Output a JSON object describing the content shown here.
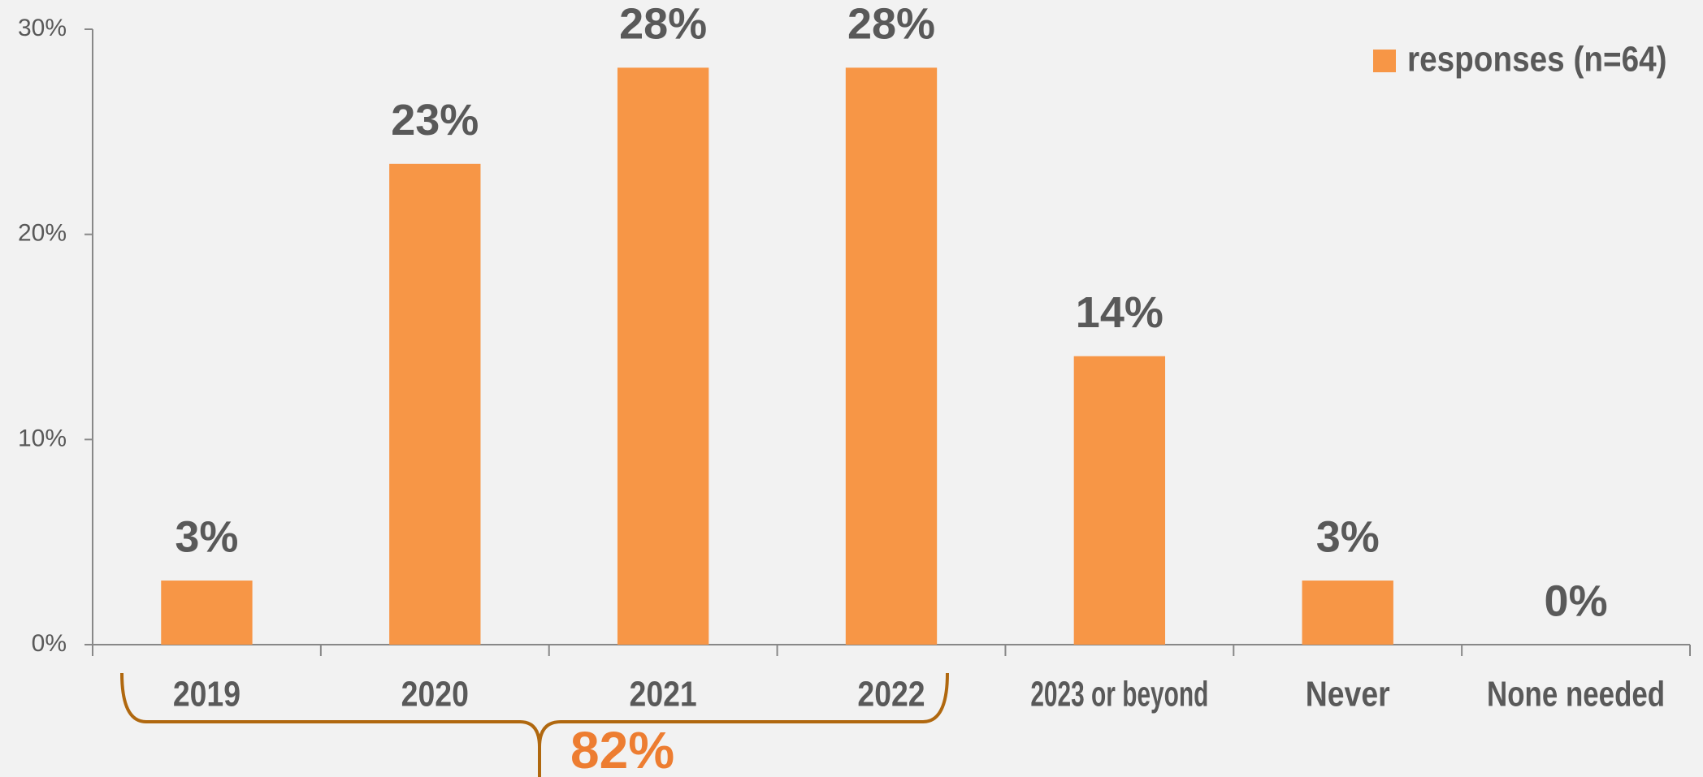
{
  "chart_data": {
    "type": "bar",
    "categories": [
      "2019",
      "2020",
      "2021",
      "2022",
      "2023 or beyond",
      "Never",
      "None needed"
    ],
    "series": [
      {
        "name": "responses (n=64)",
        "color": "#f79646",
        "values": [
          3.125,
          23.4375,
          28.125,
          28.125,
          14.0625,
          3.125,
          0
        ],
        "value_labels": [
          "3%",
          "23%",
          "28%",
          "28%",
          "14%",
          "3%",
          "0%"
        ]
      }
    ],
    "ylim": [
      0,
      30
    ],
    "yticks": [
      {
        "value": 0,
        "label": "0%"
      },
      {
        "value": 10,
        "label": "10%"
      },
      {
        "value": 20,
        "label": "20%"
      },
      {
        "value": 30,
        "label": "30%"
      }
    ],
    "legend": "top-right",
    "annotation": "82%"
  }
}
